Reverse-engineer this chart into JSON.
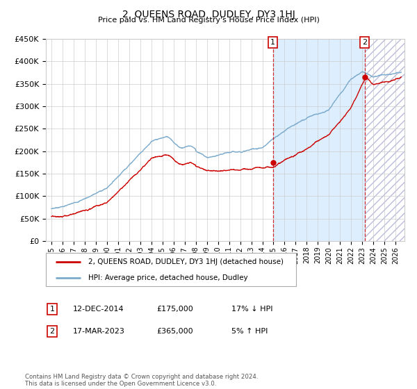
{
  "title": "2, QUEENS ROAD, DUDLEY, DY3 1HJ",
  "subtitle": "Price paid vs. HM Land Registry's House Price Index (HPI)",
  "footnote": "Contains HM Land Registry data © Crown copyright and database right 2024.\nThis data is licensed under the Open Government Licence v3.0.",
  "legend_line1": "2, QUEENS ROAD, DUDLEY, DY3 1HJ (detached house)",
  "legend_line2": "HPI: Average price, detached house, Dudley",
  "transaction1_label": "1",
  "transaction1_date": "12-DEC-2014",
  "transaction1_price": "£175,000",
  "transaction1_hpi": "17% ↓ HPI",
  "transaction2_label": "2",
  "transaction2_date": "17-MAR-2023",
  "transaction2_price": "£365,000",
  "transaction2_hpi": "5% ↑ HPI",
  "red_color": "#cc0000",
  "blue_color": "#7aaacc",
  "bg_color": "#ffffff",
  "grid_color": "#cccccc",
  "highlight_color": "#ddeeff",
  "ylim": [
    0,
    450000
  ],
  "yticks": [
    0,
    50000,
    100000,
    150000,
    200000,
    250000,
    300000,
    350000,
    400000,
    450000
  ],
  "xlabel_years": [
    "1995",
    "1996",
    "1997",
    "1998",
    "1999",
    "2000",
    "2001",
    "2002",
    "2003",
    "2004",
    "2005",
    "2006",
    "2007",
    "2008",
    "2009",
    "2010",
    "2011",
    "2012",
    "2013",
    "2014",
    "2015",
    "2016",
    "2017",
    "2018",
    "2019",
    "2020",
    "2021",
    "2022",
    "2023",
    "2024",
    "2025",
    "2026"
  ],
  "transaction1_x": 2014.95,
  "transaction1_y": 175000,
  "transaction2_x": 2023.21,
  "transaction2_y": 365000,
  "xlim_left": 1994.5,
  "xlim_right": 2026.8
}
